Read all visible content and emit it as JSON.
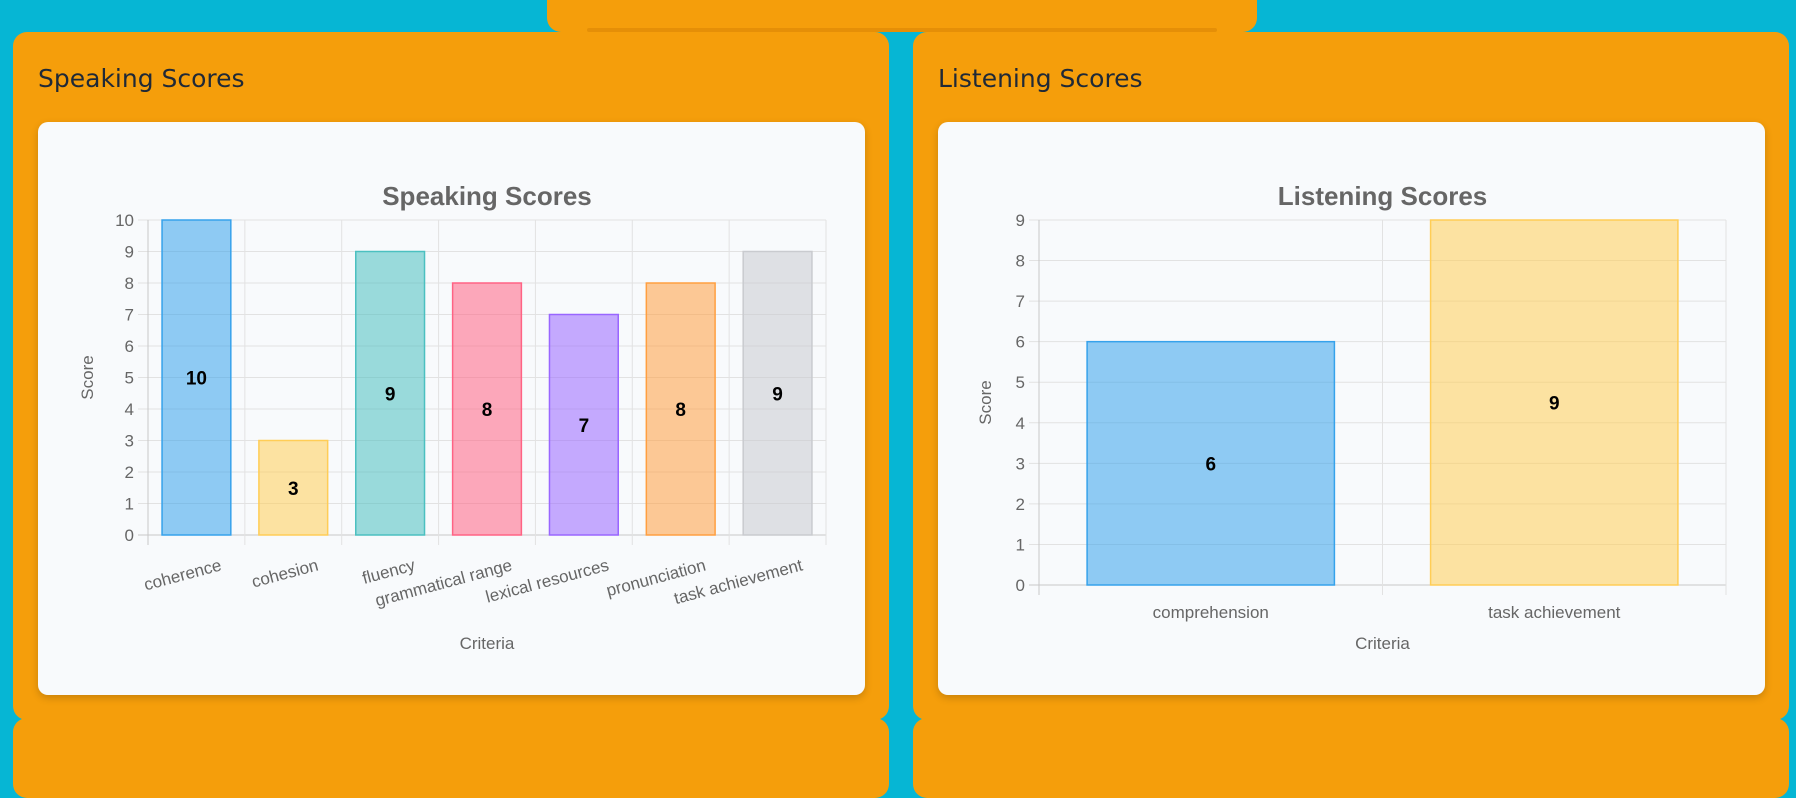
{
  "speaking": {
    "panel_title": "Speaking Scores",
    "chart_data": {
      "type": "bar",
      "title": "Speaking Scores",
      "xlabel": "Criteria",
      "ylabel": "Score",
      "categories": [
        "coherence",
        "cohesion",
        "fluency",
        "grammatical range",
        "lexical resources",
        "pronunciation",
        "task achievement"
      ],
      "values": [
        10,
        3,
        9,
        8,
        7,
        8,
        9
      ],
      "ylim": [
        0,
        10
      ],
      "yticks": [
        0,
        1,
        2,
        3,
        4,
        5,
        6,
        7,
        8,
        9,
        10
      ],
      "grid": true,
      "data_labels": true,
      "colors": [
        "#36a2eb",
        "#ffcd56",
        "#4bc0c0",
        "#ff6384",
        "#9966ff",
        "#ff9f40",
        "#c9cbcf"
      ]
    }
  },
  "listening": {
    "panel_title": "Listening Scores",
    "chart_data": {
      "type": "bar",
      "title": "Listening Scores",
      "xlabel": "Criteria",
      "ylabel": "Score",
      "categories": [
        "comprehension",
        "task achievement"
      ],
      "values": [
        6,
        9
      ],
      "ylim": [
        0,
        9
      ],
      "yticks": [
        0,
        1,
        2,
        3,
        4,
        5,
        6,
        7,
        8,
        9
      ],
      "grid": true,
      "data_labels": true,
      "colors": [
        "#36a2eb",
        "#ffcd56"
      ]
    }
  }
}
